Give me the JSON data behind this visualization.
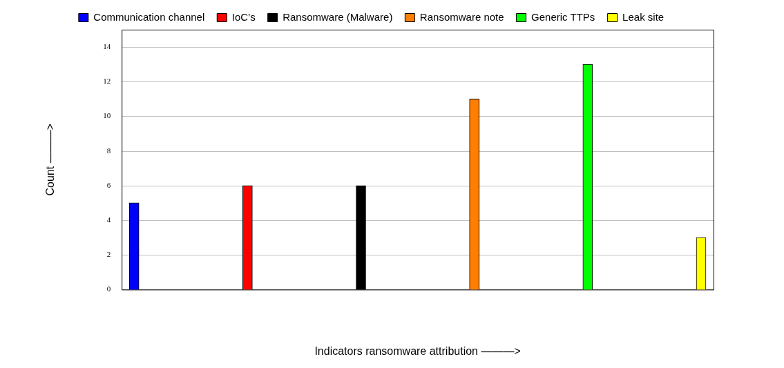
{
  "chart_data": {
    "type": "bar",
    "xlabel": "Indicators ransomware attribution ———>",
    "ylabel": "Count ———>",
    "categories": [
      null,
      null,
      null,
      null,
      null,
      null
    ],
    "series": [
      {
        "name": "Communication channel",
        "color": "#0000ff",
        "values": [
          5,
          null,
          null,
          null,
          null,
          null
        ]
      },
      {
        "name": "IoC’s",
        "color": "#ff0000",
        "values": [
          null,
          6,
          null,
          null,
          null,
          null
        ]
      },
      {
        "name": "Ransomware (Malware)",
        "color": "#000000",
        "values": [
          null,
          null,
          6,
          null,
          null,
          null
        ]
      },
      {
        "name": "Ransomware note",
        "color": "#ff8000",
        "values": [
          null,
          null,
          null,
          11,
          null,
          null
        ]
      },
      {
        "name": "Generic TTPs",
        "color": "#00ff00",
        "values": [
          null,
          null,
          null,
          null,
          13,
          null
        ]
      },
      {
        "name": "Leak site",
        "color": "#ffff00",
        "values": [
          null,
          null,
          null,
          null,
          null,
          3
        ]
      }
    ],
    "ylim": [
      0,
      15
    ],
    "yticks": [
      0,
      2,
      4,
      6,
      8,
      10,
      12,
      14
    ],
    "grid": "y",
    "legend": "top"
  }
}
